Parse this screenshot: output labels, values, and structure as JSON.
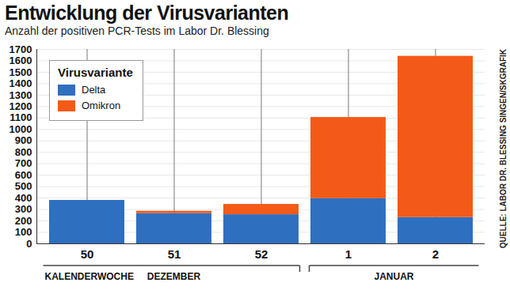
{
  "chart_data": {
    "type": "bar",
    "title": "Entwicklung der Virusvarianten",
    "subtitle": "Anzahl der positiven PCR-Tests im Labor Dr. Blessing",
    "categories": [
      "50",
      "51",
      "52",
      "1",
      "2"
    ],
    "series": [
      {
        "name": "Delta",
        "color": "#2f6fc0",
        "values": [
          380,
          265,
          255,
          395,
          230
        ]
      },
      {
        "name": "Omikron",
        "color": "#f45a17",
        "values": [
          0,
          20,
          90,
          710,
          1410
        ]
      }
    ],
    "stacked": true,
    "ylim": [
      0,
      1700
    ],
    "yticks": [
      0,
      100,
      200,
      300,
      400,
      500,
      600,
      700,
      800,
      900,
      1000,
      1100,
      1200,
      1300,
      1400,
      1500,
      1600,
      1700
    ],
    "grid": true,
    "legend": "top-left",
    "legend_title": "Virusvariante",
    "x_label": "KALENDERWOCHE",
    "x_groups": [
      {
        "label": "DEZEMBER",
        "categories": [
          "50",
          "51",
          "52"
        ]
      },
      {
        "label": "JANUAR",
        "categories": [
          "1",
          "2"
        ]
      }
    ],
    "source": "QUELLE: LABOR DR. BLESSING SINGEN/SKGRAFIK"
  }
}
